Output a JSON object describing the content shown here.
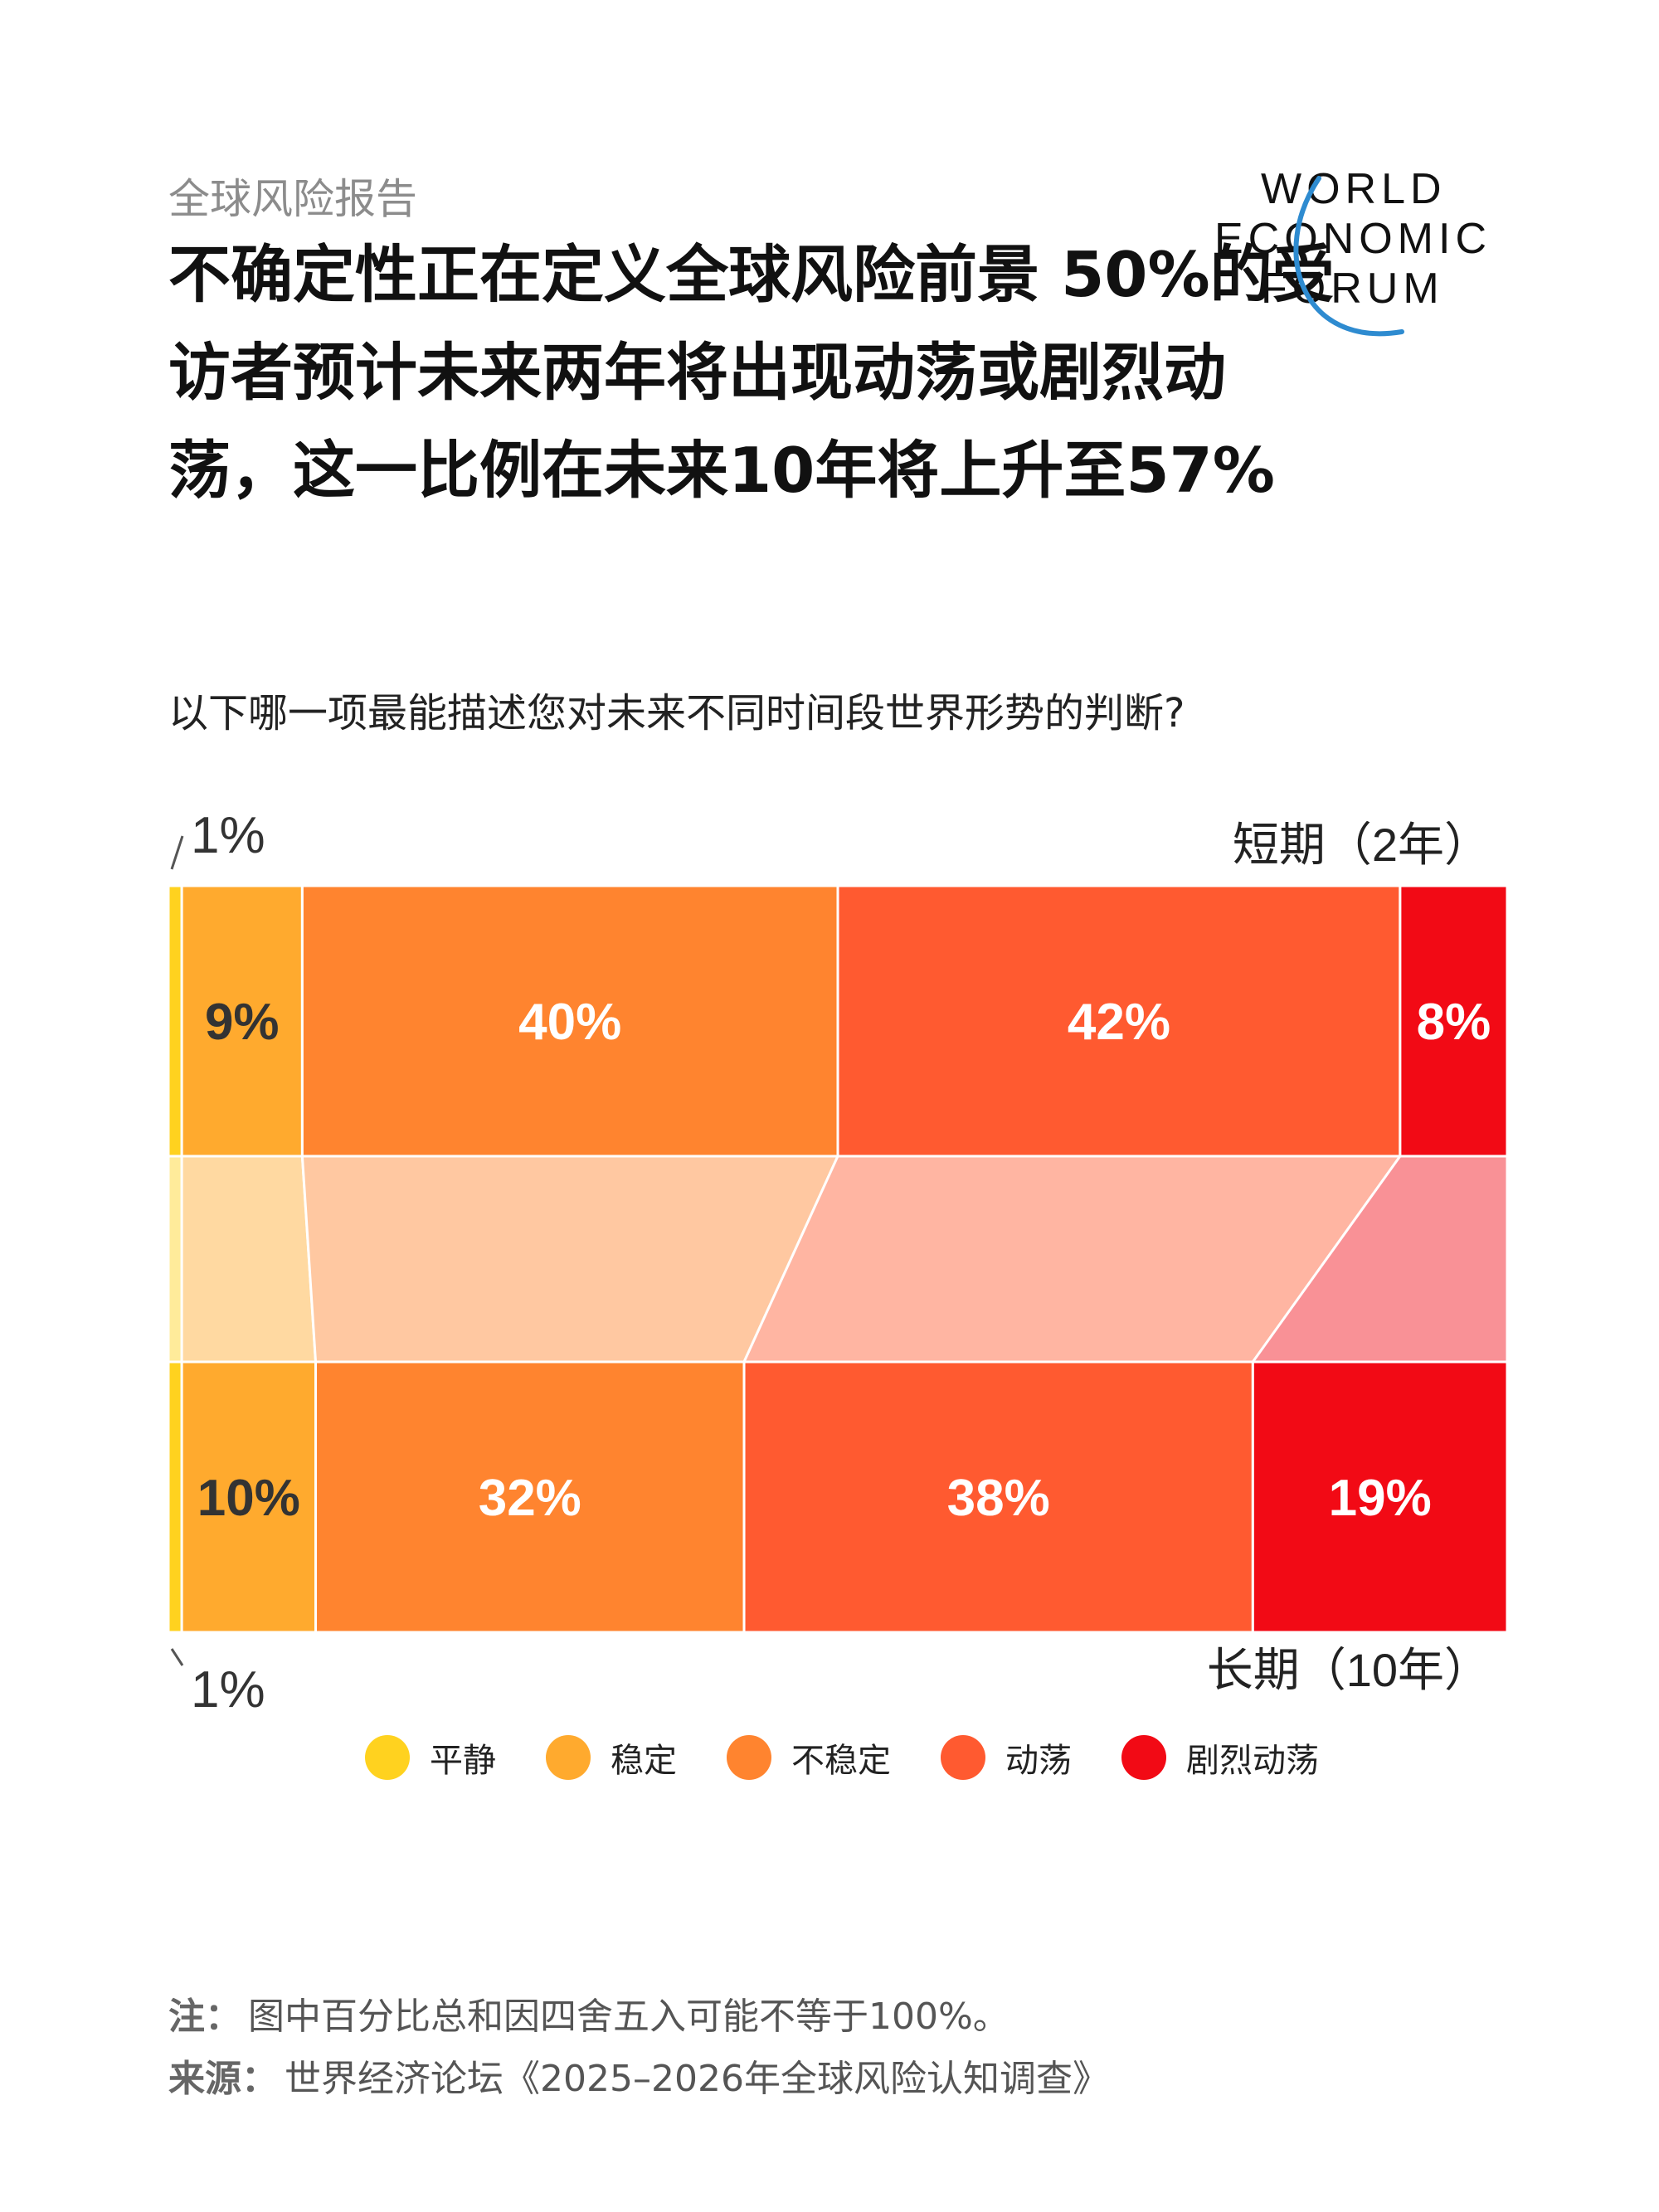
{
  "header": {
    "eyebrow": "全球风险报告",
    "headline": "不确定性正在定义全球风险前景 50%的受访者预计未来两年将出现动荡或剧烈动荡，这一比例在未来10年将上升至57%"
  },
  "logo": {
    "line1": "WORLD",
    "line2": "ECONOMIC",
    "line3": "FORUM"
  },
  "question": "以下哪一项最能描述您对未来不同时间段世界形势的判断?",
  "chart_data": {
    "type": "bar",
    "orientation": "horizontal-stacked",
    "categories": [
      "短期（2年）",
      "长期（10年）"
    ],
    "series": [
      {
        "name": "平静",
        "color": "#FFD21F",
        "values": [
          1,
          1
        ],
        "labels": [
          "1%",
          "1%"
        ]
      },
      {
        "name": "稳定",
        "color": "#FFAA2E",
        "values": [
          9,
          10
        ],
        "labels": [
          "9%",
          "10%"
        ]
      },
      {
        "name": "不稳定",
        "color": "#FF842F",
        "values": [
          40,
          32
        ],
        "labels": [
          "40%",
          "32%"
        ]
      },
      {
        "name": "动荡",
        "color": "#FF5A30",
        "values": [
          42,
          38
        ],
        "labels": [
          "42%",
          "38%"
        ]
      },
      {
        "name": "剧烈动荡",
        "color": "#F20A15",
        "values": [
          8,
          19
        ],
        "labels": [
          "8%",
          "19%"
        ]
      }
    ],
    "xlim": [
      0,
      100
    ]
  },
  "notes": {
    "note_label": "注：",
    "note_text": "图中百分比总和因四舍五入可能不等于100%。",
    "source_label": "来源：",
    "source_text": "世界经济论坛《2025–2026年全球风险认知调查》"
  }
}
